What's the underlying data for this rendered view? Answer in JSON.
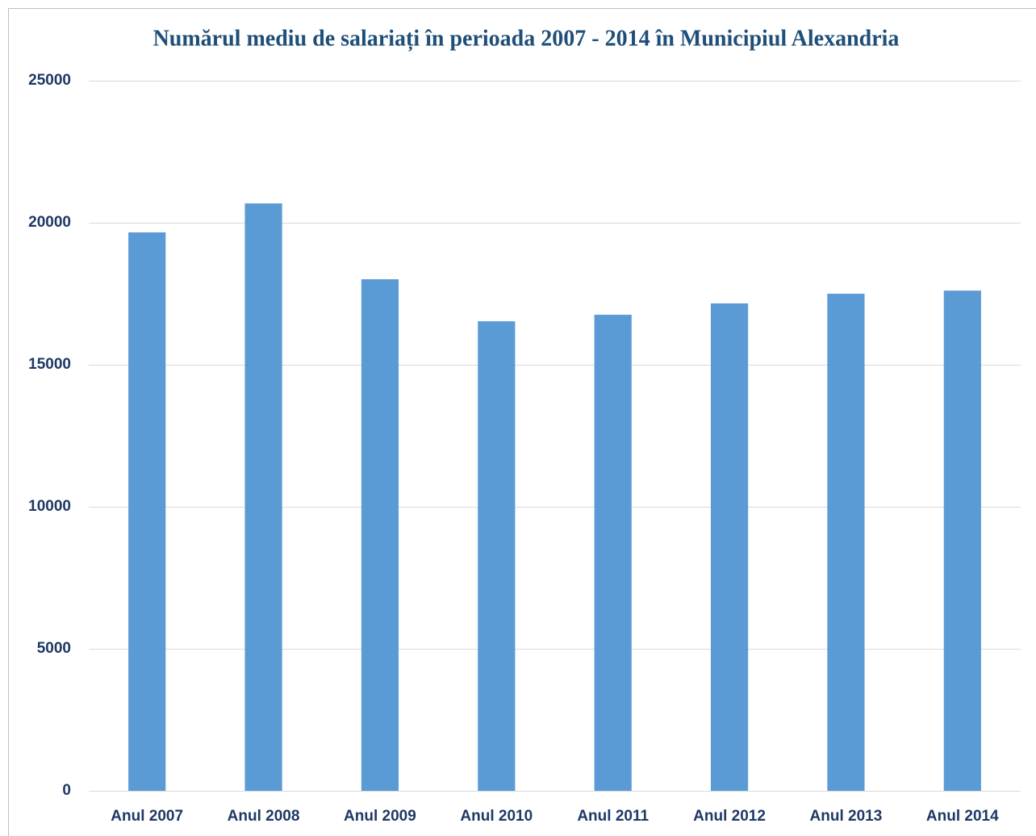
{
  "chart_data": {
    "type": "bar",
    "title": "Numărul mediu de salariați în perioada 2007 - 2014 în Municipiul Alexandria",
    "categories": [
      "Anul 2007",
      "Anul 2008",
      "Anul 2009",
      "Anul 2010",
      "Anul 2011",
      "Anul 2012",
      "Anul 2013",
      "Anul 2014"
    ],
    "values": [
      19660,
      20680,
      18010,
      16530,
      16760,
      17160,
      17500,
      17610
    ],
    "color": "#5b9bd5",
    "ylim": [
      0,
      25000
    ],
    "yticks": [
      0,
      5000,
      10000,
      15000,
      20000,
      25000
    ],
    "grid": true
  }
}
